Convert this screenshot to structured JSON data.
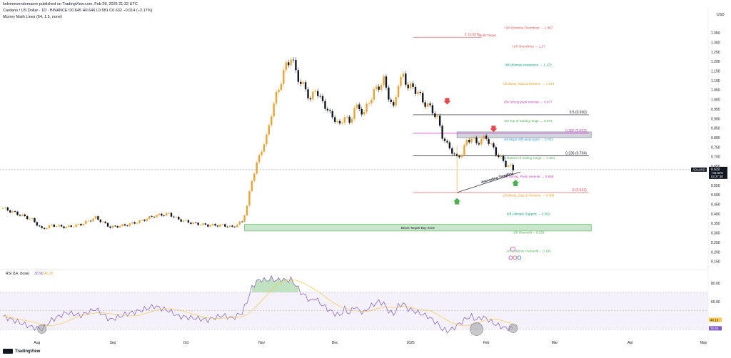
{
  "header": {
    "publisher": "kelvinmvendemaore published on TradingView.com, Feb 28, 2025 21:32 UTC",
    "symbol_line": "Cardano / US Dollar · 1D · BINANCE  O0.645 H0.646 L0.581 C0.632 −0.014 (−2.17%)",
    "indicator_line": "Murrey Math Lines (64, 1.5, none)"
  },
  "footer": {
    "brand": "TradingView"
  },
  "chart_data": [
    {
      "type": "candlestick",
      "title": "Cardano / US Dollar · 1D · BINANCE",
      "currency": "USD",
      "ylim": [
        0.13,
        1.41
      ],
      "y_ticks": [
        "1.350",
        "1.300",
        "1.250",
        "1.200",
        "1.150",
        "1.100",
        "1.050",
        "1.000",
        "0.950",
        "0.900",
        "0.850",
        "0.800",
        "0.750",
        "0.700",
        "0.650",
        "0.600",
        "0.550",
        "0.500",
        "0.450",
        "0.400",
        "0.350",
        "0.300",
        "0.250",
        "0.200",
        "0.150"
      ],
      "x_ticks": [
        "Aug",
        "Sep",
        "Oct",
        "Nov",
        "Dec",
        "2025",
        "Feb",
        "Mar",
        "Apr",
        "May"
      ],
      "price_label": {
        "symbol": "ADAUSD",
        "value": "0.632",
        "change": "+44.62%",
        "timer": "03:27:30"
      },
      "murrey_levels": [
        {
          "label": "+2/8 Extreme Overshoot →  1.367",
          "value": 1.367,
          "color": "#e5474d"
        },
        {
          "label": "1 (1.327)",
          "value": 1.327,
          "color": "#e5474d"
        },
        {
          "label": "+1/8 Overshoot →  1.27",
          "value": 1.27,
          "color": "#e5474d"
        },
        {
          "label": "8/8 Ultimate resistance →  1.172",
          "value": 1.172,
          "color": "#089981"
        },
        {
          "label": "7/8 Weak, Stop & Reverse →  1.074",
          "value": 1.074,
          "color": "#f39c12"
        },
        {
          "label": "6/8 Strong pivot reverse →  0.977",
          "value": 0.977,
          "color": "#c53ac5"
        },
        {
          "label": "0.5 (0.920)",
          "value": 0.92,
          "color": "#131722"
        },
        {
          "label": "5/8 Top of trading range →  0.879",
          "value": 0.879,
          "color": "#4caf50"
        },
        {
          "label": "0.382 (0.823)",
          "value": 0.823,
          "color": "#c53ac5"
        },
        {
          "label": "4/8 Major S/R pivot point →  0.781",
          "value": 0.781,
          "color": "#2196f3"
        },
        {
          "label": "0.236 (0.704)",
          "value": 0.704,
          "color": "#131722"
        },
        {
          "label": "3/8 Bottom of trading range →  0.684",
          "value": 0.684,
          "color": "#4caf50"
        },
        {
          "label": "2/8 Strong, Pivot, reverse →  0.586",
          "value": 0.586,
          "color": "#c53ac5"
        },
        {
          "label": "0 (0.512)",
          "value": 0.512,
          "color": "#e5474d"
        },
        {
          "label": "1/8 Weak, Stop & Reverse →  0.488",
          "value": 0.488,
          "color": "#f39c12"
        },
        {
          "label": "0/8 Ultimate Support →  0.391",
          "value": 0.391,
          "color": "#089981"
        },
        {
          "label": "-1/8 Oversold→  0.293",
          "value": 0.293,
          "color": "#4caf50"
        },
        {
          "label": "-2/8 Extreme Oversold→  0.195",
          "value": 0.195,
          "color": "#4caf50"
        }
      ],
      "annotations": {
        "bulls_target": "Bulls Target",
        "bears_target": "Bears Target/ Buy Zone",
        "trendline": "Ascending Trendline"
      },
      "colors": {
        "up": "#f0a22e",
        "down": "#131722"
      },
      "price_series": [
        [
          0,
          0.43
        ],
        [
          6,
          0.4
        ],
        [
          12,
          0.37
        ],
        [
          16,
          0.32
        ],
        [
          20,
          0.34
        ],
        [
          26,
          0.33
        ],
        [
          32,
          0.345
        ],
        [
          38,
          0.38
        ],
        [
          44,
          0.33
        ],
        [
          50,
          0.34
        ],
        [
          56,
          0.36
        ],
        [
          62,
          0.39
        ],
        [
          68,
          0.4
        ],
        [
          72,
          0.37
        ],
        [
          78,
          0.35
        ],
        [
          84,
          0.34
        ],
        [
          90,
          0.34
        ],
        [
          94,
          0.33
        ],
        [
          98,
          0.36
        ],
        [
          100,
          0.44
        ],
        [
          102,
          0.58
        ],
        [
          104,
          0.66
        ],
        [
          106,
          0.74
        ],
        [
          108,
          0.8
        ],
        [
          110,
          0.93
        ],
        [
          112,
          1.02
        ],
        [
          114,
          1.1
        ],
        [
          116,
          1.18
        ],
        [
          118,
          1.22
        ],
        [
          120,
          1.15
        ],
        [
          122,
          1.08
        ],
        [
          124,
          1.06
        ],
        [
          126,
          0.99
        ],
        [
          128,
          1.06
        ],
        [
          130,
          1.0
        ],
        [
          132,
          0.97
        ],
        [
          134,
          0.92
        ],
        [
          136,
          0.9
        ],
        [
          138,
          0.86
        ],
        [
          140,
          0.92
        ],
        [
          142,
          0.87
        ],
        [
          144,
          0.96
        ],
        [
          146,
          0.95
        ],
        [
          148,
          0.93
        ],
        [
          150,
          0.99
        ],
        [
          152,
          1.04
        ],
        [
          154,
          1.07
        ],
        [
          156,
          1.1
        ],
        [
          158,
          1.02
        ],
        [
          160,
          0.95
        ],
        [
          162,
          1.09
        ],
        [
          164,
          1.12
        ],
        [
          166,
          1.07
        ],
        [
          168,
          1.06
        ],
        [
          170,
          1.04
        ],
        [
          172,
          0.99
        ],
        [
          174,
          0.97
        ],
        [
          176,
          0.94
        ],
        [
          178,
          0.9
        ],
        [
          180,
          0.81
        ],
        [
          182,
          0.76
        ],
        [
          184,
          0.73
        ],
        [
          186,
          0.69
        ],
        [
          188,
          0.72
        ],
        [
          190,
          0.78
        ],
        [
          192,
          0.8
        ],
        [
          194,
          0.77
        ],
        [
          196,
          0.79
        ],
        [
          198,
          0.8
        ],
        [
          200,
          0.76
        ],
        [
          202,
          0.72
        ],
        [
          204,
          0.69
        ],
        [
          206,
          0.66
        ],
        [
          208,
          0.645
        ],
        [
          209,
          0.632
        ]
      ]
    },
    {
      "type": "line",
      "title": "RSI (14, close)",
      "series": [
        {
          "name": "RSI",
          "value_label": "30.90",
          "color": "#7e57c2"
        },
        {
          "name": "MA",
          "value_label": "40.15",
          "color": "#f9c74f"
        }
      ],
      "y_ticks": [
        "80.00",
        "60.00"
      ],
      "levels": [
        70,
        50,
        30
      ],
      "ylim": [
        25,
        87
      ],
      "rsi_series": [
        [
          0,
          44
        ],
        [
          6,
          38
        ],
        [
          12,
          32
        ],
        [
          16,
          30
        ],
        [
          20,
          40
        ],
        [
          26,
          48
        ],
        [
          32,
          45
        ],
        [
          38,
          52
        ],
        [
          44,
          40
        ],
        [
          50,
          46
        ],
        [
          56,
          50
        ],
        [
          62,
          55
        ],
        [
          68,
          50
        ],
        [
          72,
          44
        ],
        [
          78,
          42
        ],
        [
          84,
          40
        ],
        [
          90,
          45
        ],
        [
          94,
          42
        ],
        [
          98,
          48
        ],
        [
          100,
          60
        ],
        [
          102,
          75
        ],
        [
          104,
          82
        ],
        [
          106,
          84
        ],
        [
          108,
          83
        ],
        [
          110,
          85
        ],
        [
          112,
          83
        ],
        [
          114,
          84
        ],
        [
          116,
          83
        ],
        [
          118,
          84
        ],
        [
          120,
          78
        ],
        [
          122,
          70
        ],
        [
          124,
          66
        ],
        [
          126,
          60
        ],
        [
          128,
          64
        ],
        [
          130,
          58
        ],
        [
          132,
          54
        ],
        [
          134,
          50
        ],
        [
          136,
          47
        ],
        [
          138,
          45
        ],
        [
          140,
          52
        ],
        [
          142,
          47
        ],
        [
          144,
          55
        ],
        [
          146,
          50
        ],
        [
          148,
          48
        ],
        [
          150,
          54
        ],
        [
          152,
          57
        ],
        [
          154,
          60
        ],
        [
          156,
          58
        ],
        [
          158,
          50
        ],
        [
          160,
          46
        ],
        [
          162,
          55
        ],
        [
          164,
          58
        ],
        [
          166,
          52
        ],
        [
          168,
          50
        ],
        [
          170,
          48
        ],
        [
          172,
          46
        ],
        [
          174,
          44
        ],
        [
          176,
          40
        ],
        [
          178,
          36
        ],
        [
          180,
          30
        ],
        [
          182,
          28
        ],
        [
          184,
          30
        ],
        [
          186,
          34
        ],
        [
          188,
          38
        ],
        [
          190,
          42
        ],
        [
          192,
          44
        ],
        [
          194,
          40
        ],
        [
          196,
          43
        ],
        [
          198,
          42
        ],
        [
          200,
          38
        ],
        [
          202,
          35
        ],
        [
          204,
          33
        ],
        [
          206,
          31
        ],
        [
          208,
          30.9
        ],
        [
          209,
          30.9
        ]
      ]
    }
  ]
}
